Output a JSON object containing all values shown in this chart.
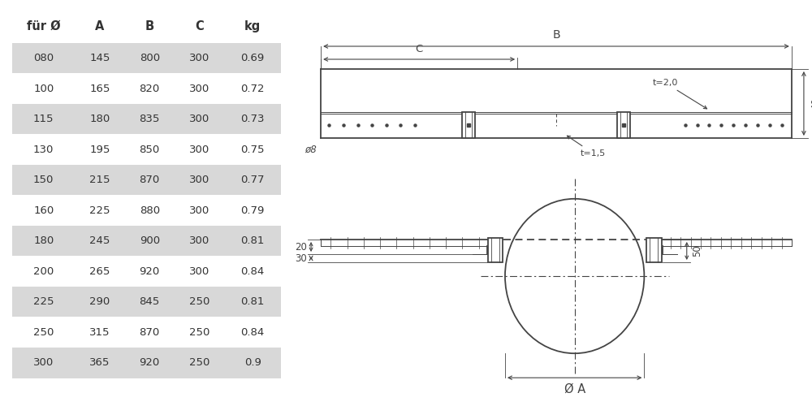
{
  "table_headers": [
    "für Ø",
    "A",
    "B",
    "C",
    "kg"
  ],
  "table_rows": [
    [
      "080",
      "145",
      "800",
      "300",
      "0.69"
    ],
    [
      "100",
      "165",
      "820",
      "300",
      "0.72"
    ],
    [
      "115",
      "180",
      "835",
      "300",
      "0.73"
    ],
    [
      "130",
      "195",
      "850",
      "300",
      "0.75"
    ],
    [
      "150",
      "215",
      "870",
      "300",
      "0.77"
    ],
    [
      "160",
      "225",
      "880",
      "300",
      "0.79"
    ],
    [
      "180",
      "245",
      "900",
      "300",
      "0.81"
    ],
    [
      "200",
      "265",
      "920",
      "300",
      "0.84"
    ],
    [
      "225",
      "290",
      "845",
      "250",
      "0.81"
    ],
    [
      "250",
      "315",
      "870",
      "250",
      "0.84"
    ],
    [
      "300",
      "365",
      "920",
      "250",
      "0.9"
    ]
  ],
  "shaded_rows": [
    0,
    2,
    4,
    6,
    8,
    10
  ],
  "row_bg_color": "#d8d8d8",
  "text_color": "#333333",
  "bg_color": "#ffffff",
  "line_color": "#444444"
}
